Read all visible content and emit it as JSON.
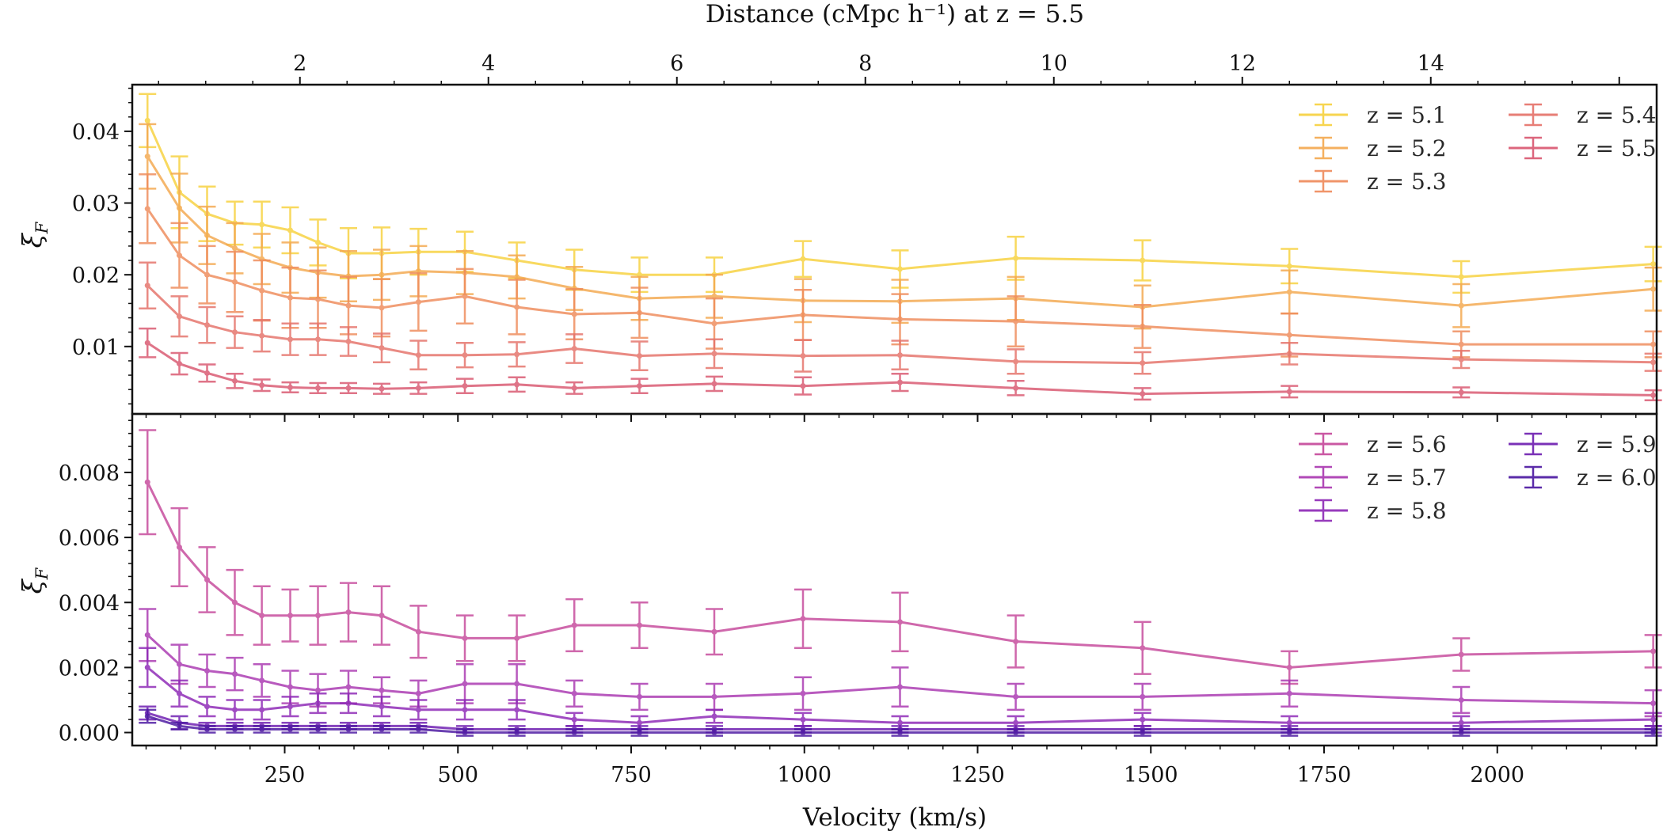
{
  "figure": {
    "top_axis_label": "Distance (cMpc h⁻¹) at z = 5.5",
    "x_label": "Velocity (km/s)",
    "y_label_top": "ξ",
    "y_label_bottom": "ξ",
    "y_label_sub": "F"
  },
  "colors": {
    "z5.1": "#f7d13d",
    "z5.2": "#f4a84e",
    "z5.3": "#ef8a5a",
    "z5.4": "#e57168",
    "z5.5": "#d9566f",
    "z5.6": "#c5479a",
    "z5.7": "#a936b0",
    "z5.8": "#8c26b5",
    "z5.9": "#6c1bb0",
    "z6.0": "#4a16a0"
  },
  "chart_data": [
    {
      "type": "line",
      "name": "upper",
      "x": [
        52,
        98,
        138,
        178,
        217,
        258,
        298,
        342,
        390,
        443,
        510,
        585,
        668,
        762,
        870,
        998,
        1138,
        1305,
        1488,
        1700,
        1948,
        2225
      ],
      "xlim": [
        30,
        2230
      ],
      "ylim": [
        0.0006,
        0.0465
      ],
      "yticks": [
        0.01,
        0.02,
        0.03,
        0.04
      ],
      "ytick_labels": [
        "0.01",
        "0.02",
        "0.03",
        "0.04"
      ],
      "xticks": [
        250,
        500,
        750,
        1000,
        1250,
        1500,
        1750,
        2000
      ],
      "xtick_labels": [
        "250",
        "500",
        "750",
        "1000",
        "1250",
        "1500",
        "1750",
        "2000"
      ],
      "top_xticks": [
        2,
        4,
        6,
        8,
        10,
        12,
        14
      ],
      "top_xtick_labels": [
        "2",
        "4",
        "6",
        "8",
        "10",
        "12",
        "14"
      ],
      "top_x_scale_kms_per_mpc": 136.0,
      "legend": "top-right, 2 columns",
      "series": [
        {
          "name": "z = 5.1",
          "color_key": "z5.1",
          "y": [
            0.0415,
            0.0315,
            0.0285,
            0.0272,
            0.027,
            0.0262,
            0.0245,
            0.023,
            0.023,
            0.0232,
            0.0232,
            0.022,
            0.0207,
            0.02,
            0.02,
            0.0222,
            0.0208,
            0.0223,
            0.022,
            0.0212,
            0.0197,
            0.0215
          ],
          "err": [
            0.0037,
            0.005,
            0.0038,
            0.003,
            0.0032,
            0.0032,
            0.0032,
            0.0035,
            0.0036,
            0.0032,
            0.0028,
            0.0025,
            0.0028,
            0.0024,
            0.0024,
            0.0025,
            0.0026,
            0.003,
            0.0028,
            0.0024,
            0.0022,
            0.0024
          ]
        },
        {
          "name": "z = 5.2",
          "color_key": "z5.2",
          "y": [
            0.0365,
            0.0293,
            0.0255,
            0.0237,
            0.0222,
            0.021,
            0.0203,
            0.0198,
            0.02,
            0.0205,
            0.0203,
            0.0197,
            0.0181,
            0.0167,
            0.017,
            0.0164,
            0.0163,
            0.0167,
            0.0155,
            0.0176,
            0.0157,
            0.018
          ],
          "err": [
            0.0045,
            0.0048,
            0.004,
            0.0035,
            0.0035,
            0.0035,
            0.0035,
            0.0035,
            0.0035,
            0.0035,
            0.003,
            0.003,
            0.003,
            0.003,
            0.003,
            0.003,
            0.003,
            0.003,
            0.003,
            0.003,
            0.003,
            0.003
          ]
        },
        {
          "name": "z = 5.3",
          "color_key": "z5.3",
          "y": [
            0.0292,
            0.0227,
            0.02,
            0.019,
            0.0178,
            0.0168,
            0.0166,
            0.0157,
            0.0154,
            0.0162,
            0.017,
            0.0155,
            0.0145,
            0.0147,
            0.0132,
            0.0144,
            0.0138,
            0.0135,
            0.0128,
            0.0116,
            0.0103,
            0.0103
          ],
          "err": [
            0.0048,
            0.0045,
            0.004,
            0.0042,
            0.0042,
            0.0042,
            0.004,
            0.004,
            0.004,
            0.004,
            0.0038,
            0.0038,
            0.0035,
            0.0035,
            0.0035,
            0.0035,
            0.0035,
            0.0035,
            0.003,
            0.003,
            0.0018,
            0.0018
          ]
        },
        {
          "name": "z = 5.4",
          "color_key": "z5.4",
          "y": [
            0.0185,
            0.0142,
            0.013,
            0.012,
            0.0115,
            0.011,
            0.011,
            0.0107,
            0.0098,
            0.0088,
            0.0088,
            0.0089,
            0.0097,
            0.0087,
            0.009,
            0.0087,
            0.0088,
            0.0079,
            0.0077,
            0.009,
            0.0082,
            0.0078
          ],
          "err": [
            0.0032,
            0.0028,
            0.0025,
            0.0022,
            0.0022,
            0.0022,
            0.0022,
            0.002,
            0.002,
            0.002,
            0.0017,
            0.0017,
            0.002,
            0.002,
            0.002,
            0.0022,
            0.002,
            0.0017,
            0.0015,
            0.0015,
            0.0012,
            0.0012
          ]
        },
        {
          "name": "z = 5.5",
          "color_key": "z5.5",
          "y": [
            0.0105,
            0.0076,
            0.0063,
            0.0052,
            0.0046,
            0.0043,
            0.0042,
            0.0042,
            0.0041,
            0.0042,
            0.0045,
            0.0047,
            0.0042,
            0.0045,
            0.0048,
            0.0045,
            0.005,
            0.0042,
            0.0034,
            0.0037,
            0.0036,
            0.0032
          ],
          "err": [
            0.002,
            0.0015,
            0.0012,
            0.001,
            0.0008,
            0.0007,
            0.0007,
            0.0007,
            0.0007,
            0.0008,
            0.001,
            0.001,
            0.0008,
            0.001,
            0.001,
            0.0012,
            0.0012,
            0.001,
            0.0008,
            0.0008,
            0.0007,
            0.0007
          ]
        }
      ]
    },
    {
      "type": "line",
      "name": "lower",
      "x": [
        52,
        98,
        138,
        178,
        217,
        258,
        298,
        342,
        390,
        443,
        510,
        585,
        668,
        762,
        870,
        998,
        1138,
        1305,
        1488,
        1700,
        1948,
        2225
      ],
      "xlim": [
        30,
        2230
      ],
      "ylim": [
        -0.0004,
        0.0098
      ],
      "yticks": [
        0.0,
        0.002,
        0.004,
        0.006,
        0.008
      ],
      "ytick_labels": [
        "0.000",
        "0.002",
        "0.004",
        "0.006",
        "0.008"
      ],
      "xticks": [
        250,
        500,
        750,
        1000,
        1250,
        1500,
        1750,
        2000
      ],
      "xtick_labels": [
        "250",
        "500",
        "750",
        "1000",
        "1250",
        "1500",
        "1750",
        "2000"
      ],
      "legend": "top-right, 2 columns",
      "series": [
        {
          "name": "z = 5.6",
          "color_key": "z5.6",
          "y": [
            0.0077,
            0.0057,
            0.0047,
            0.004,
            0.0036,
            0.0036,
            0.0036,
            0.0037,
            0.0036,
            0.0031,
            0.0029,
            0.0029,
            0.0033,
            0.0033,
            0.0031,
            0.0035,
            0.0034,
            0.0028,
            0.0026,
            0.002,
            0.0024,
            0.0025
          ],
          "err": [
            0.0016,
            0.0012,
            0.001,
            0.001,
            0.0009,
            0.0008,
            0.0009,
            0.0009,
            0.0009,
            0.0008,
            0.0007,
            0.0007,
            0.0008,
            0.0007,
            0.0007,
            0.0009,
            0.0009,
            0.0008,
            0.0008,
            0.0005,
            0.0005,
            0.0005
          ]
        },
        {
          "name": "z = 5.7",
          "color_key": "z5.7",
          "y": [
            0.003,
            0.0021,
            0.0019,
            0.0018,
            0.0016,
            0.0014,
            0.0013,
            0.0014,
            0.0013,
            0.0012,
            0.0015,
            0.0015,
            0.0012,
            0.0011,
            0.0011,
            0.0012,
            0.0014,
            0.0011,
            0.0011,
            0.0012,
            0.001,
            0.0009
          ],
          "err": [
            0.0008,
            0.0006,
            0.0005,
            0.0005,
            0.0005,
            0.0005,
            0.0005,
            0.0005,
            0.0004,
            0.0004,
            0.0006,
            0.0006,
            0.0004,
            0.0004,
            0.0004,
            0.0005,
            0.0006,
            0.0004,
            0.0004,
            0.0004,
            0.0004,
            0.0004
          ]
        },
        {
          "name": "z = 5.8",
          "color_key": "z5.8",
          "y": [
            0.002,
            0.0012,
            0.0008,
            0.0007,
            0.0007,
            0.0008,
            0.0009,
            0.0009,
            0.0008,
            0.0007,
            0.0007,
            0.0007,
            0.0004,
            0.0003,
            0.0005,
            0.0004,
            0.0003,
            0.0003,
            0.0004,
            0.0003,
            0.0003,
            0.0004
          ],
          "err": [
            0.0006,
            0.0004,
            0.0003,
            0.0003,
            0.0003,
            0.0003,
            0.0003,
            0.0003,
            0.0003,
            0.0003,
            0.0003,
            0.0003,
            0.0002,
            0.0002,
            0.0002,
            0.0002,
            0.0002,
            0.0002,
            0.0002,
            0.0002,
            0.0002,
            0.0002
          ]
        },
        {
          "name": "z = 5.9",
          "color_key": "z5.9",
          "y": [
            0.0006,
            0.0003,
            0.0002,
            0.0002,
            0.0002,
            0.0002,
            0.0002,
            0.0002,
            0.0002,
            0.0002,
            0.0001,
            0.0001,
            0.0001,
            0.0001,
            0.0001,
            0.0001,
            0.0001,
            0.0001,
            0.0001,
            0.0001,
            0.0001,
            0.0001
          ],
          "err": [
            0.0002,
            0.0002,
            0.0001,
            0.0001,
            0.0001,
            0.0001,
            0.0001,
            0.0001,
            0.0001,
            0.0001,
            0.0001,
            0.0001,
            0.0001,
            0.0001,
            0.0001,
            0.0001,
            0.0001,
            0.0001,
            0.0001,
            0.0001,
            0.0001,
            0.0001
          ]
        },
        {
          "name": "z = 6.0",
          "color_key": "z6.0",
          "y": [
            0.0005,
            0.0002,
            0.0001,
            0.0001,
            0.0001,
            0.0001,
            0.0001,
            0.0001,
            0.0001,
            0.0001,
            0.0,
            0.0,
            0.0,
            0.0,
            0.0,
            0.0,
            0.0,
            0.0,
            0.0,
            0.0,
            0.0,
            0.0
          ],
          "err": [
            0.0002,
            0.0001,
            0.0001,
            0.0001,
            0.0001,
            0.0001,
            0.0001,
            0.0001,
            0.0001,
            0.0001,
            0.0001,
            0.0001,
            0.0001,
            0.0001,
            0.0001,
            0.0001,
            0.0001,
            0.0001,
            0.0001,
            0.0001,
            0.0001,
            0.0001
          ]
        }
      ]
    }
  ]
}
